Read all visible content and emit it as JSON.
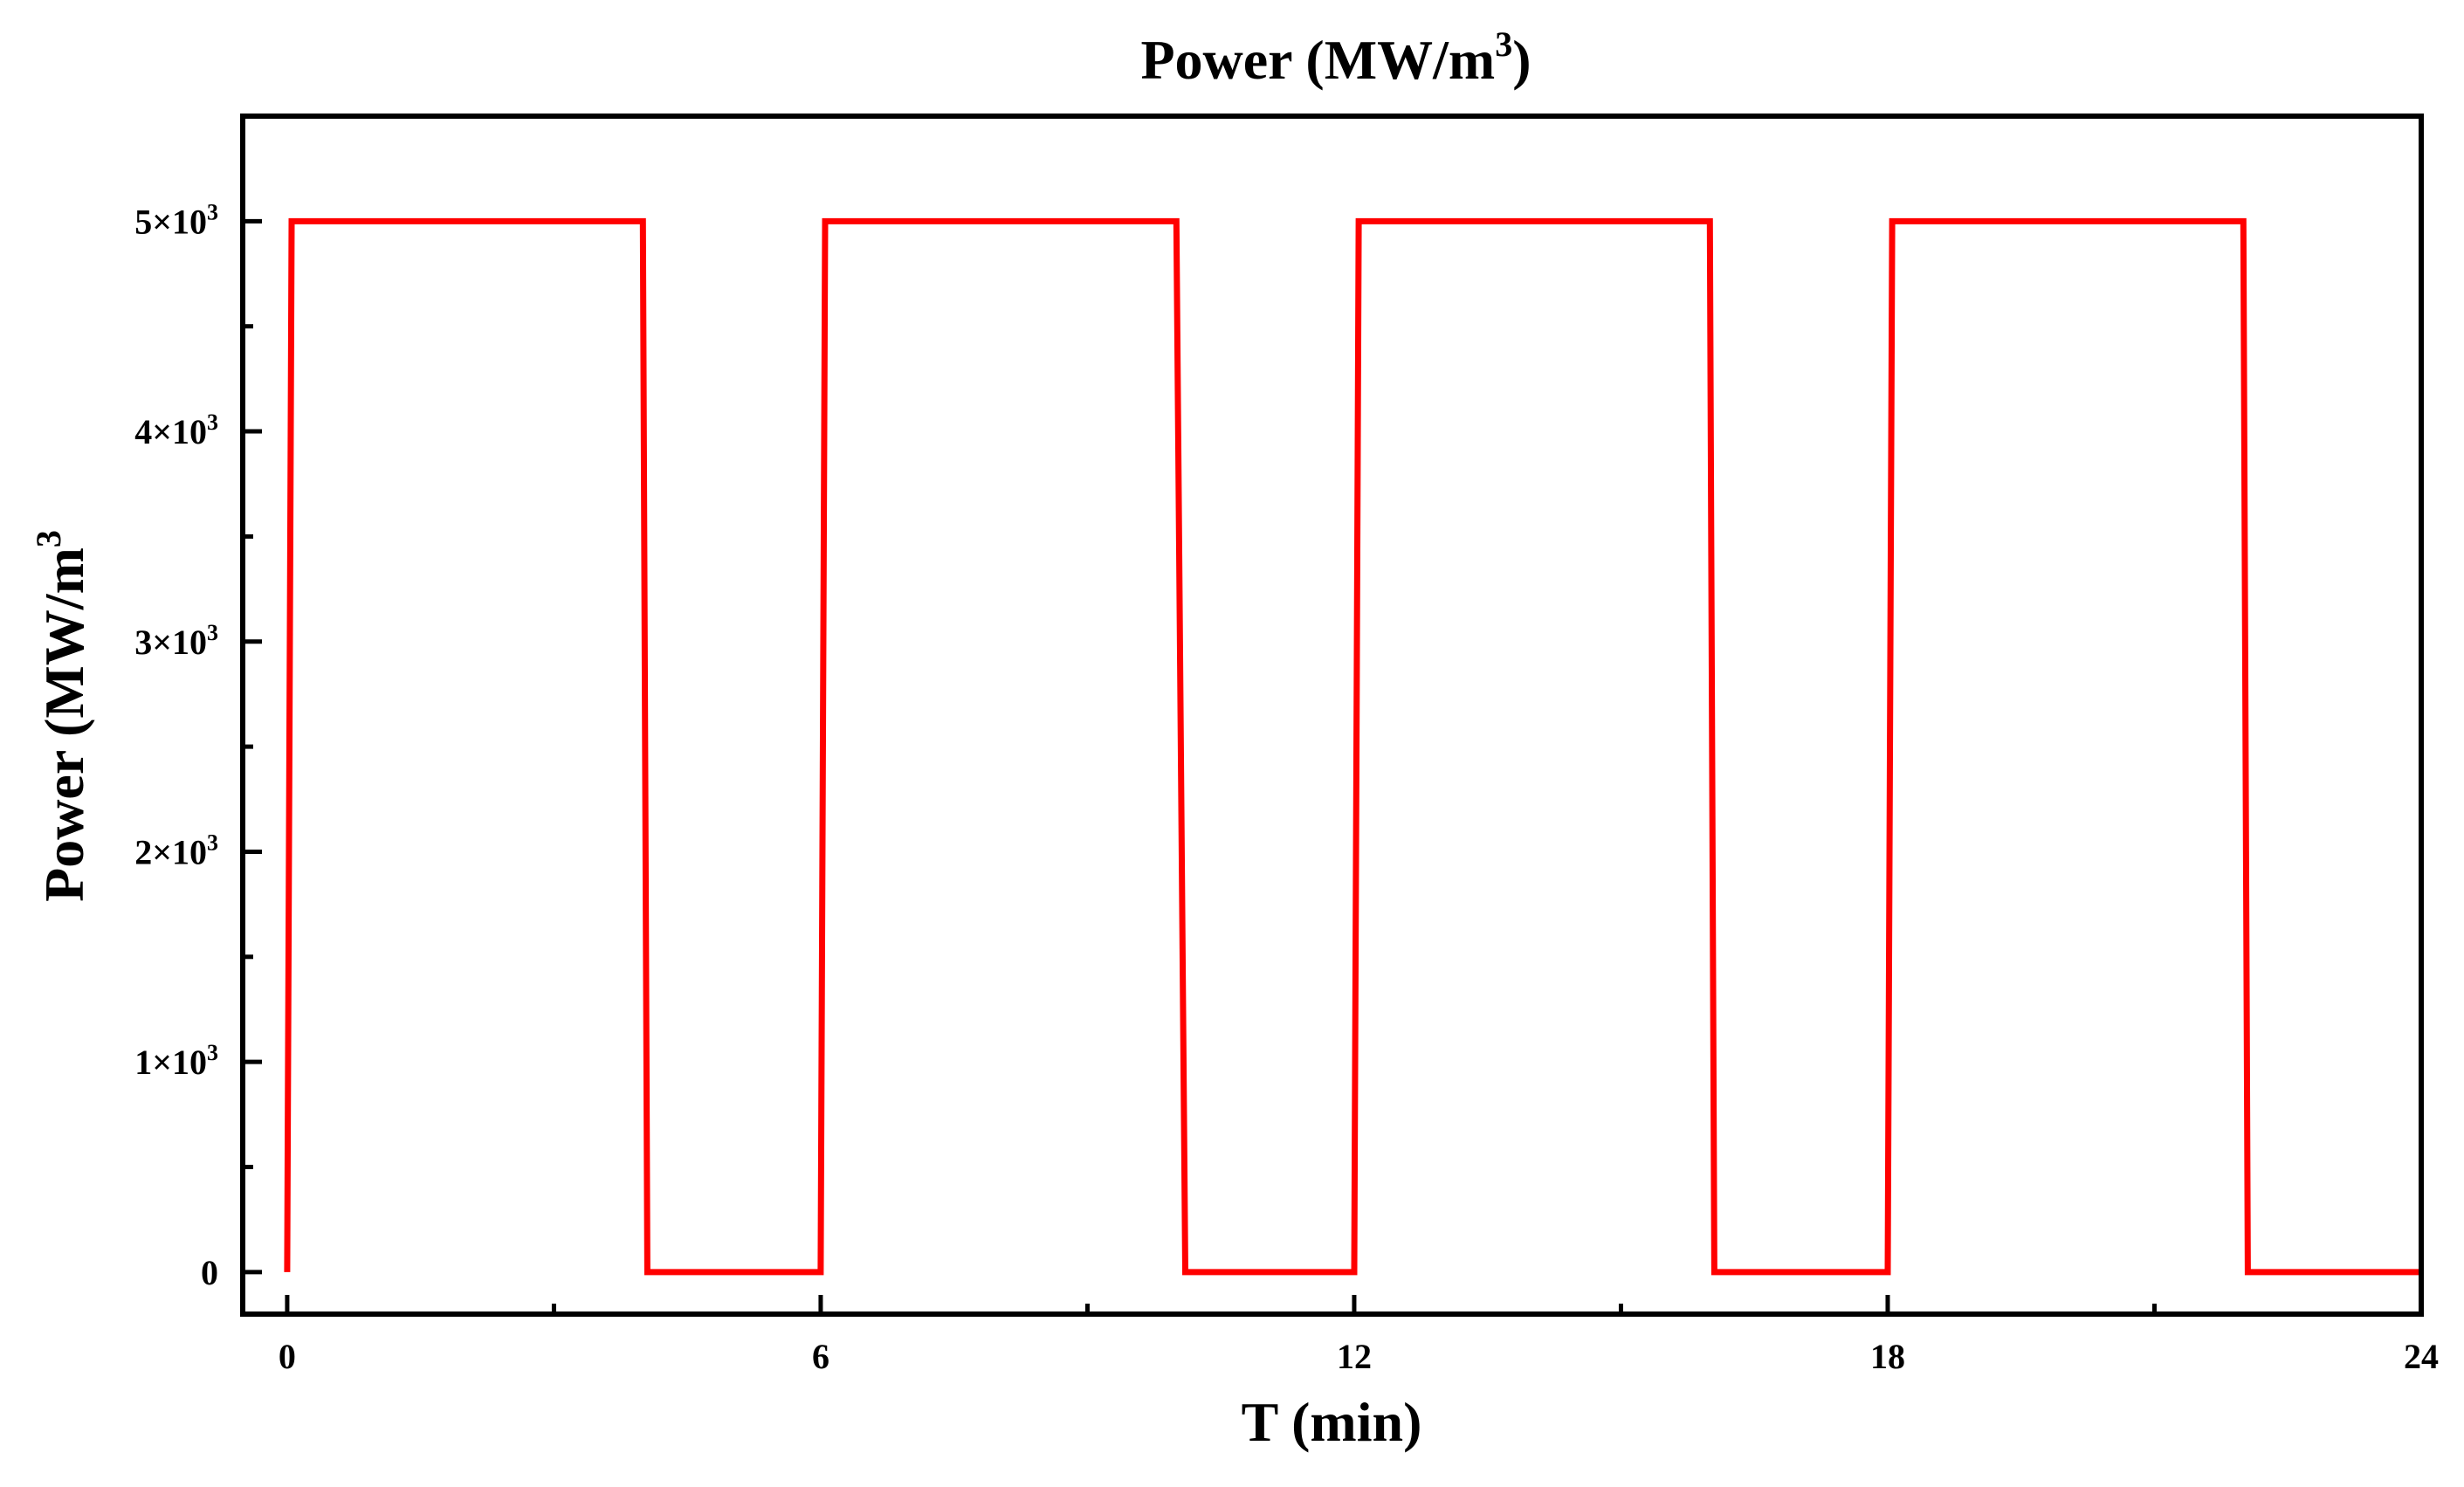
{
  "chart_data": {
    "type": "line",
    "title": {
      "base": "Power (MW/m",
      "sup": "3",
      "tail": ")"
    },
    "xlabel": "T (min)",
    "ylabel": {
      "base": "Power (MW/m",
      "sup": "3",
      "tail": ""
    },
    "xlim": [
      -0.5,
      24
    ],
    "ylim": [
      -200,
      5500
    ],
    "x_ticks": [
      {
        "value": 0,
        "label": "0"
      },
      {
        "value": 6,
        "label": "6"
      },
      {
        "value": 12,
        "label": "12"
      },
      {
        "value": 18,
        "label": "18"
      },
      {
        "value": 24,
        "label": "24"
      }
    ],
    "x_minor_ticks": [
      3,
      9,
      15,
      21
    ],
    "y_ticks": [
      {
        "value": 0,
        "label": "0",
        "exp": ""
      },
      {
        "value": 1000,
        "label": "1×10",
        "exp": "3"
      },
      {
        "value": 2000,
        "label": "2×10",
        "exp": "3"
      },
      {
        "value": 3000,
        "label": "3×10",
        "exp": "3"
      },
      {
        "value": 4000,
        "label": "4×10",
        "exp": "3"
      },
      {
        "value": 5000,
        "label": "5×10",
        "exp": "3"
      }
    ],
    "y_minor_ticks": [
      500,
      1500,
      2500,
      3500,
      4500
    ],
    "grid": false,
    "series": [
      {
        "color": "#ff0000",
        "x": [
          0,
          0.05,
          4.0,
          4.05,
          6.0,
          6.05,
          10.0,
          10.1,
          12.0,
          12.05,
          16.0,
          16.05,
          18.0,
          18.05,
          22.0,
          22.05,
          24.0
        ],
        "y": [
          0,
          5000,
          5000,
          0,
          0,
          5000,
          5000,
          0,
          0,
          5000,
          5000,
          0,
          0,
          5000,
          5000,
          0,
          0
        ]
      }
    ]
  }
}
